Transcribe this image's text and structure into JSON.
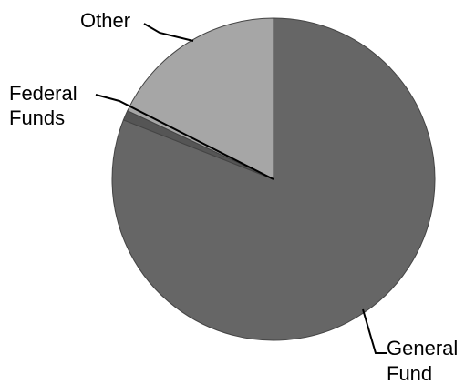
{
  "chart_data": {
    "type": "pie",
    "start_angle_deg": 0,
    "direction": "clockwise",
    "slices": [
      {
        "label_lines": [
          "General",
          "Fund"
        ],
        "value": 81,
        "color": "#666666"
      },
      {
        "label_lines": [
          "Federal",
          "Funds"
        ],
        "value": 1,
        "color": "#555555"
      },
      {
        "label_lines": [
          "Other"
        ],
        "value": 18,
        "color": "#a6a6a6"
      }
    ],
    "legend": "none",
    "labels": "outside with leader lines"
  }
}
